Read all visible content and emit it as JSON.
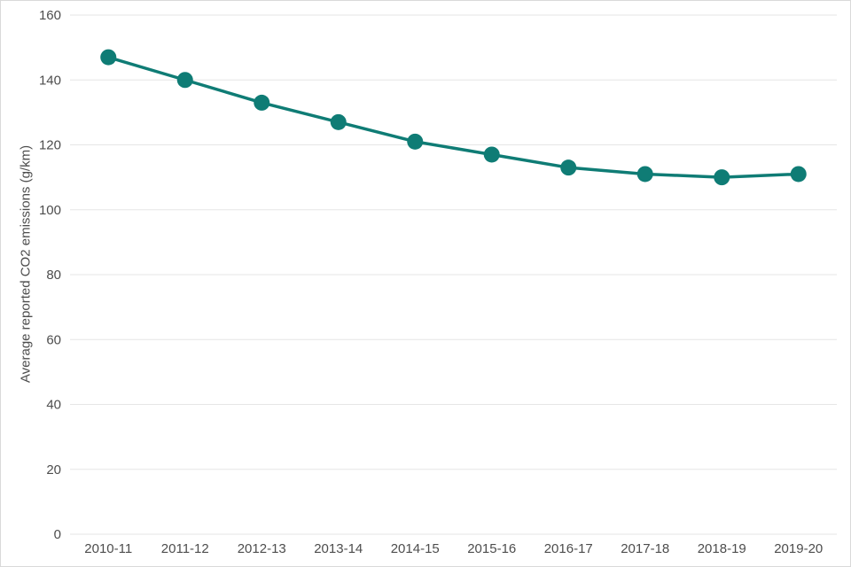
{
  "figure": {
    "background": "#ffffff",
    "border_color": "#d9d9d9"
  },
  "chart_data": {
    "type": "line",
    "title": "",
    "categories": [
      "2010-11",
      "2011-12",
      "2012-13",
      "2013-14",
      "2014-15",
      "2015-16",
      "2016-17",
      "2017-18",
      "2018-19",
      "2019-20"
    ],
    "series": [
      {
        "name": "Average reported CO2 emissions",
        "values": [
          147,
          140,
          133,
          127,
          121,
          117,
          113,
          111,
          110,
          111
        ],
        "color": "#0f7c75",
        "marker": "circle"
      }
    ],
    "xlabel": "",
    "ylabel": "Average reported CO2 emissions (g/km)",
    "ylim": [
      0,
      160
    ],
    "yticks": [
      0,
      20,
      40,
      60,
      80,
      100,
      120,
      140,
      160
    ],
    "grid": "horizontal",
    "gridline_color": "#e6e6e6",
    "tick_label_color": "#4d4d4d",
    "legend_position": "none",
    "line_width": 3.5,
    "marker_radius": 9
  }
}
